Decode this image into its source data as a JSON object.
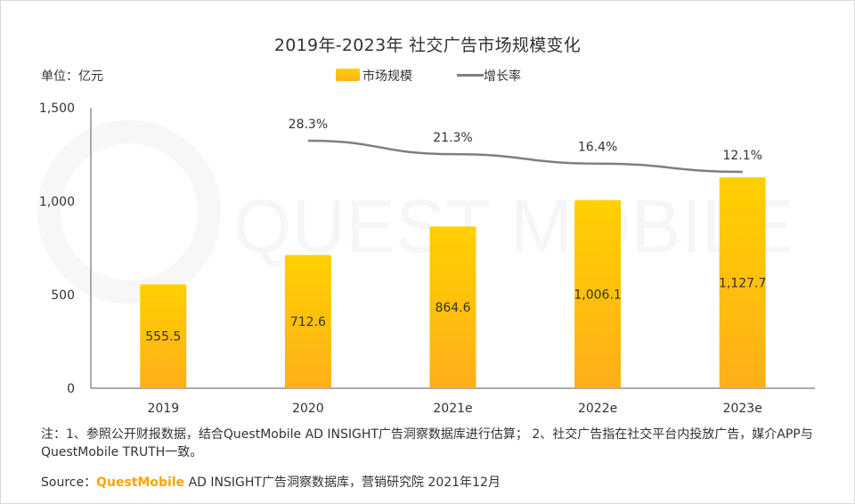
{
  "title": "2019年-2023年 社交广告市场规模变化",
  "unit": "单位：亿元",
  "legend": {
    "bar_label": "市场规模",
    "line_label": "增长率"
  },
  "watermark": "QUEST MOBILE",
  "notes": "注：1、参照公开财报数据，结合QuestMobile AD INSIGHT广告洞察数据库进行估算； 2、社交广告指在社交平台内投放广告，媒介APP与QuestMobile TRUTH一致。",
  "source": {
    "prefix": "Source：",
    "brand": "QuestMobile",
    "rest": " AD INSIGHT广告洞察数据库，营销研究院 2021年12月"
  },
  "colors": {
    "bar_top": "#ffd000",
    "bar_bottom": "#ffaf1a",
    "line": "#7f7f7f",
    "brand": "#f7a600"
  },
  "chart_data": {
    "type": "bar",
    "categories": [
      "2019",
      "2020",
      "2021e",
      "2022e",
      "2023e"
    ],
    "series": [
      {
        "name": "市场规模",
        "type": "bar",
        "values": [
          555.5,
          712.6,
          864.6,
          1006.1,
          1127.7
        ],
        "labels": [
          "555.5",
          "712.6",
          "864.6",
          "1,006.1",
          "1,127.7"
        ]
      },
      {
        "name": "增长率",
        "type": "line",
        "values": [
          null,
          28.3,
          21.3,
          16.4,
          12.1
        ],
        "labels": [
          "",
          "28.3%",
          "21.3%",
          "16.4%",
          "12.1%"
        ]
      }
    ],
    "yticks": [
      "0",
      "500",
      "1,000",
      "1,500"
    ],
    "ylim": [
      0,
      1500
    ],
    "grid": false,
    "legend_position": "top-center"
  }
}
